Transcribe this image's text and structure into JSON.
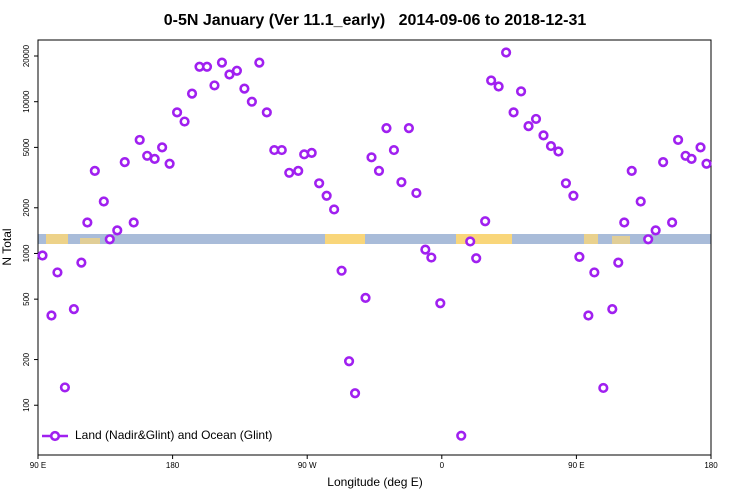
{
  "chart_data": {
    "type": "scatter",
    "title": "0-5N January (Ver 11.1_early)   2014-09-06 to 2018-12-31",
    "x_label": "Longitude (deg E)",
    "y_label": "N Total",
    "xlim": [
      90,
      540
    ],
    "xticks": [
      {
        "value": 90,
        "label": "90 E"
      },
      180,
      {
        "value": 270,
        "label": "90 W"
      },
      {
        "value": 360,
        "label": "0"
      },
      {
        "value": 450,
        "label": "90 E"
      },
      {
        "value": 540,
        "label": "180"
      }
    ],
    "ylim": [
      47,
      25500
    ],
    "yticks": [
      100,
      200,
      500,
      1000,
      2000,
      5000,
      10000,
      20000
    ],
    "ylog": true,
    "legend": "lower left",
    "series": [
      {
        "name": "Land (Nadir&Glint) and Ocean (Glint)",
        "color": "#a020f0",
        "x": [
          93,
          99,
          103,
          108,
          114,
          119,
          123,
          128,
          134,
          138,
          143,
          148,
          154,
          158,
          163,
          168,
          173,
          178,
          183,
          188,
          193,
          198,
          203,
          208,
          213,
          218,
          223,
          228,
          233,
          238,
          243,
          248,
          253,
          258,
          264,
          268,
          273,
          278,
          283,
          288,
          293,
          298,
          302,
          309,
          313,
          318,
          323,
          328,
          333,
          338,
          343,
          349,
          353,
          359,
          373,
          379,
          383,
          389,
          393,
          398,
          403,
          408,
          413,
          418,
          423,
          428,
          433,
          438,
          443,
          448,
          452,
          458,
          462,
          468,
          474,
          478,
          482,
          487,
          493,
          498,
          503,
          508,
          514,
          518,
          523,
          527,
          533,
          537
        ],
        "values": [
          970,
          390,
          750,
          131,
          430,
          870,
          1600,
          3500,
          2200,
          1240,
          1420,
          4000,
          1600,
          5600,
          4400,
          4200,
          5000,
          3900,
          8500,
          7400,
          11300,
          17000,
          17000,
          12800,
          18100,
          15100,
          16000,
          12200,
          10000,
          18100,
          8500,
          4800,
          4800,
          3400,
          3500,
          4500,
          4600,
          2900,
          2400,
          1950,
          770,
          195,
          120,
          510,
          4300,
          3500,
          6700,
          4800,
          2950,
          6700,
          2500,
          1060,
          940,
          470,
          63,
          1200,
          930,
          1630,
          13800,
          12600,
          21100,
          8500,
          11700,
          6900,
          7700,
          6000,
          5100,
          4700,
          2900,
          2400,
          950,
          390,
          750,
          130,
          430,
          870,
          1600,
          3500,
          2200,
          1240,
          1420,
          4000,
          1600,
          5600,
          4400,
          4200,
          5000,
          3900
        ]
      }
    ]
  }
}
